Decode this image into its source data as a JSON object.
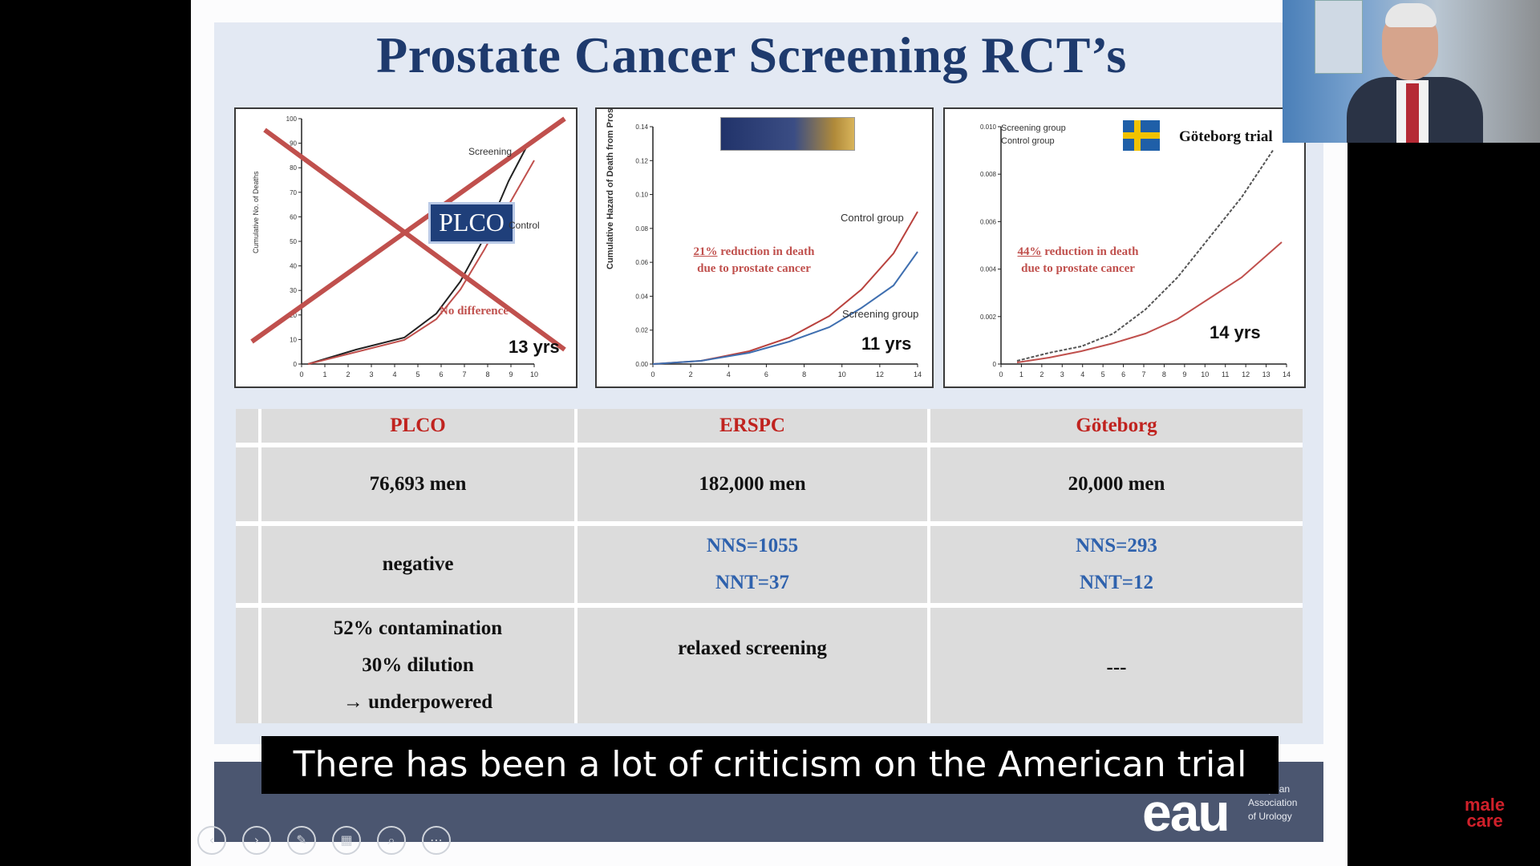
{
  "slide": {
    "title": "Prostate Cancer Screening RCT’s"
  },
  "panels": {
    "plco": {
      "badge": "PLCO",
      "years": "13 yrs",
      "annotation": "No difference",
      "legend_screening": "Screening",
      "legend_control": "Control",
      "ylabel": "Cumulative No. of Deaths",
      "xticks": [
        "0",
        "1",
        "2",
        "3",
        "4",
        "5",
        "6",
        "7",
        "8",
        "9",
        "10"
      ],
      "yticks": [
        "0",
        "10",
        "20",
        "30",
        "40",
        "50",
        "60",
        "70",
        "80",
        "90",
        "100"
      ]
    },
    "erspc": {
      "years": "11 yrs",
      "reduction_pct": "21%",
      "reduction_line1": " reduction in death",
      "reduction_line2": "due to prostate cancer",
      "legend_control": "Control group",
      "legend_screening": "Screening group",
      "ylabel": "Cumulative Hazard of Death from Prostate Cancer",
      "xticks": [
        "0",
        "2",
        "4",
        "6",
        "8",
        "10",
        "12",
        "14"
      ],
      "yticks": [
        "0.00",
        "0.02",
        "0.04",
        "0.06",
        "0.08",
        "0.10",
        "0.12",
        "0.14"
      ]
    },
    "goteborg": {
      "flag_label": "Göteborg trial",
      "years": "14 yrs",
      "reduction_pct": "44%",
      "reduction_line1": " reduction in death",
      "reduction_line2": "due to prostate cancer",
      "legend_screening": "Screening group",
      "legend_control": "Control group",
      "xticks": [
        "0",
        "1",
        "2",
        "3",
        "4",
        "5",
        "6",
        "7",
        "8",
        "9",
        "10",
        "11",
        "12",
        "13",
        "14"
      ],
      "yticks": [
        "0",
        "0.002",
        "0.004",
        "0.006",
        "0.008",
        "0.010"
      ]
    }
  },
  "table": {
    "headers": [
      "PLCO",
      "ERSPC",
      "Göteborg"
    ],
    "row_men": [
      "76,693 men",
      "182,000 men",
      "20,000 men"
    ],
    "row_result": {
      "plco": "negative",
      "erspc_nns": "NNS=1055",
      "erspc_nnt": "NNT=37",
      "gote_nns": "NNS=293",
      "gote_nnt": "NNT=12"
    },
    "row_notes": {
      "plco_1": "52% contamination",
      "plco_2": "30% dilution",
      "plco_3": "→ underpowered",
      "erspc": "relaxed screening",
      "gote": "---"
    }
  },
  "footer": {
    "logo": "eau",
    "org_line1": "European",
    "org_line2": "Association",
    "org_line3": "of Urology"
  },
  "caption": "There has been a lot of criticism on the American trial",
  "watermark": {
    "line1": "male",
    "line2": "care"
  },
  "colors": {
    "title": "#1e3a6d",
    "header_red": "#c0231f",
    "nns_blue": "#2f62ad",
    "cross_red": "#c0504d"
  },
  "presenter_controls": [
    "prev-icon",
    "next-icon",
    "pen-icon",
    "slides-icon",
    "zoom-icon",
    "more-icon"
  ]
}
